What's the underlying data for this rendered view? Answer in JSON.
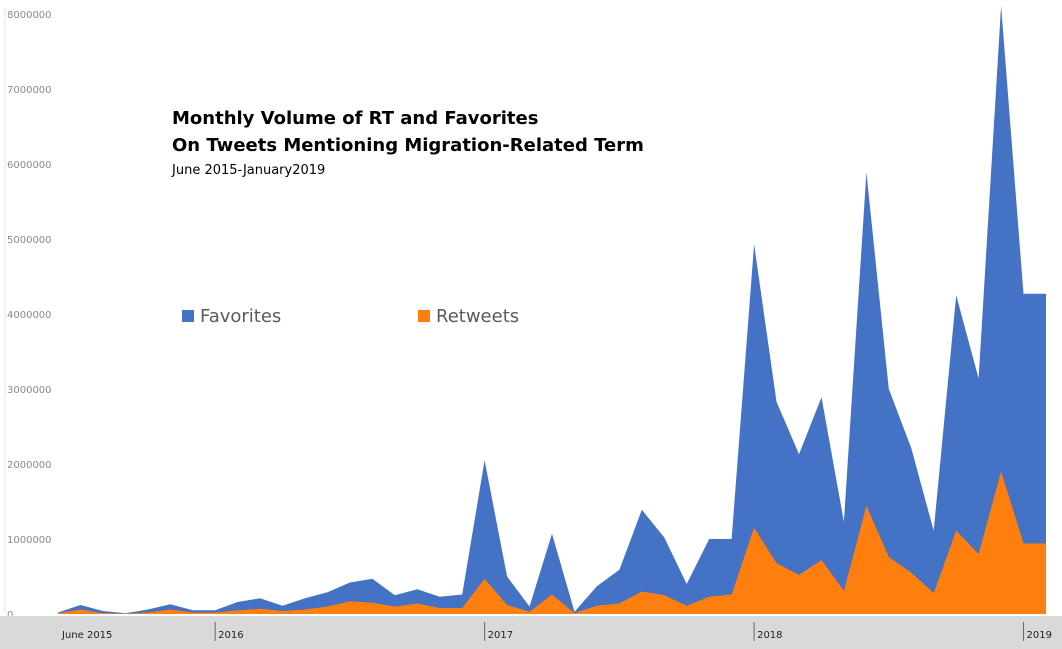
{
  "chart_data": {
    "type": "area",
    "title_line1": "Monthly Volume of RT and Favorites",
    "title_line2": "On Tweets Mentioning Migration-Related Term",
    "subtitle": "June 2015-January2019",
    "ylim": [
      0,
      8000000
    ],
    "yticks": [
      "0",
      "1000000",
      "2000000",
      "3000000",
      "4000000",
      "5000000",
      "6000000",
      "7000000",
      "8000000"
    ],
    "x_labels": [
      {
        "label": "June 2015",
        "index": 0
      },
      {
        "label": "2016",
        "index": 7
      },
      {
        "label": "2017",
        "index": 19
      },
      {
        "label": "2018",
        "index": 31
      },
      {
        "label": "2019",
        "index": 43
      }
    ],
    "legend_position": "middle-left",
    "x": [
      "2015-06",
      "2015-07",
      "2015-08",
      "2015-09",
      "2015-10",
      "2015-11",
      "2015-12",
      "2016-01",
      "2016-02",
      "2016-03",
      "2016-04",
      "2016-05",
      "2016-06",
      "2016-07",
      "2016-08",
      "2016-09",
      "2016-10",
      "2016-11",
      "2016-12",
      "2017-01",
      "2017-02",
      "2017-03",
      "2017-04",
      "2017-05",
      "2017-06",
      "2017-07",
      "2017-08",
      "2017-09",
      "2017-10",
      "2017-11",
      "2017-12",
      "2018-01",
      "2018-02",
      "2018-03",
      "2018-04",
      "2018-05",
      "2018-06",
      "2018-07",
      "2018-08",
      "2018-09",
      "2018-10",
      "2018-11",
      "2018-12",
      "2019-01",
      "2019-02"
    ],
    "series": [
      {
        "name": "Favorites",
        "color": "#4472c4",
        "values": [
          20000,
          120000,
          40000,
          10000,
          60000,
          130000,
          50000,
          50000,
          160000,
          210000,
          110000,
          210000,
          290000,
          420000,
          470000,
          250000,
          330000,
          230000,
          260000,
          2050000,
          500000,
          100000,
          1070000,
          30000,
          370000,
          590000,
          1390000,
          1020000,
          400000,
          1000000,
          1000000,
          4930000,
          2830000,
          2130000,
          2890000,
          1230000,
          5890000,
          3000000,
          2210000,
          1110000,
          4250000,
          3140000,
          8110000,
          4270000,
          4270000
        ]
      },
      {
        "name": "Retweets",
        "color": "#ff7f0e",
        "values": [
          10000,
          60000,
          10000,
          5000,
          20000,
          60000,
          20000,
          20000,
          50000,
          70000,
          40000,
          60000,
          100000,
          170000,
          150000,
          100000,
          140000,
          80000,
          80000,
          470000,
          120000,
          30000,
          260000,
          10000,
          110000,
          140000,
          300000,
          250000,
          110000,
          230000,
          260000,
          1150000,
          680000,
          520000,
          720000,
          310000,
          1440000,
          760000,
          550000,
          280000,
          1110000,
          800000,
          1900000,
          940000,
          940000
        ]
      }
    ]
  }
}
